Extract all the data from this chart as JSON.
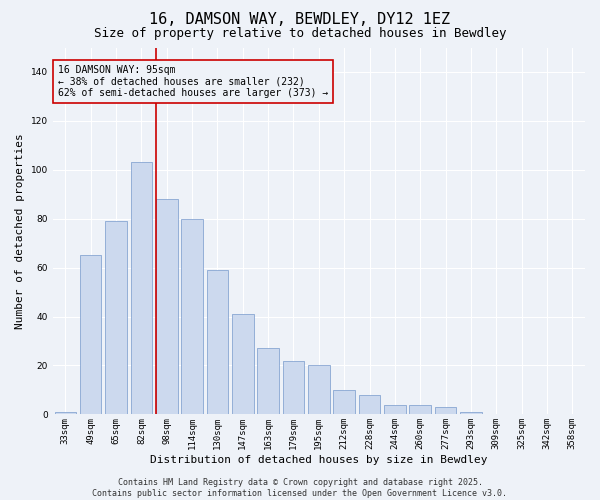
{
  "title": "16, DAMSON WAY, BEWDLEY, DY12 1EZ",
  "subtitle": "Size of property relative to detached houses in Bewdley",
  "xlabel": "Distribution of detached houses by size in Bewdley",
  "ylabel": "Number of detached properties",
  "categories": [
    "33sqm",
    "49sqm",
    "65sqm",
    "82sqm",
    "98sqm",
    "114sqm",
    "130sqm",
    "147sqm",
    "163sqm",
    "179sqm",
    "195sqm",
    "212sqm",
    "228sqm",
    "244sqm",
    "260sqm",
    "277sqm",
    "293sqm",
    "309sqm",
    "325sqm",
    "342sqm",
    "358sqm"
  ],
  "values": [
    1,
    65,
    79,
    103,
    88,
    80,
    59,
    41,
    27,
    22,
    20,
    10,
    8,
    4,
    4,
    3,
    1,
    0,
    0,
    0,
    0
  ],
  "bar_color": "#ccd9ee",
  "bar_edge_color": "#7799cc",
  "vline_x_index": 4,
  "vline_color": "#cc0000",
  "ylim": [
    0,
    150
  ],
  "yticks": [
    0,
    20,
    40,
    60,
    80,
    100,
    120,
    140
  ],
  "annotation_line1": "16 DAMSON WAY: 95sqm",
  "annotation_line2": "← 38% of detached houses are smaller (232)",
  "annotation_line3": "62% of semi-detached houses are larger (373) →",
  "annotation_box_color": "#cc0000",
  "bg_color": "#eef2f8",
  "grid_color": "#ffffff",
  "footer": "Contains HM Land Registry data © Crown copyright and database right 2025.\nContains public sector information licensed under the Open Government Licence v3.0.",
  "title_fontsize": 11,
  "subtitle_fontsize": 9,
  "xlabel_fontsize": 8,
  "ylabel_fontsize": 8,
  "tick_fontsize": 6.5,
  "annotation_fontsize": 7,
  "footer_fontsize": 6
}
